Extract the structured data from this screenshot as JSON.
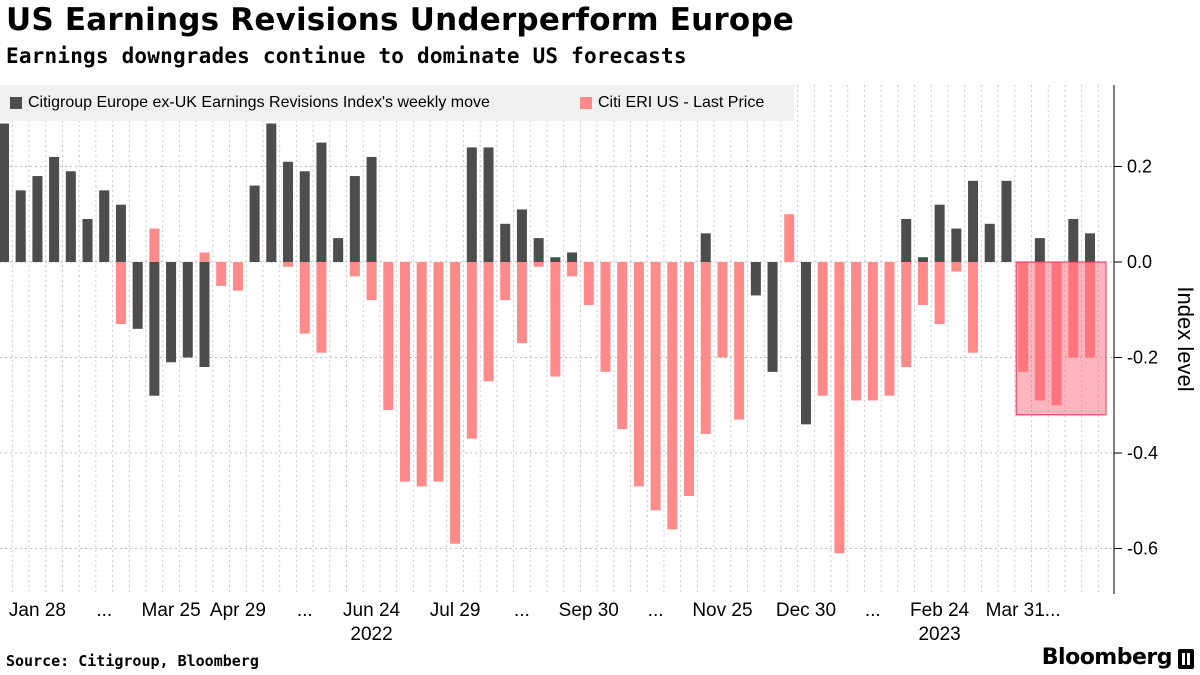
{
  "title": "US Earnings Revisions Underperform Europe",
  "subtitle": "Earnings downgrades continue to dominate US forecasts",
  "source": "Source: Citigroup, Bloomberg",
  "brand": "Bloomberg",
  "chart_data": {
    "type": "bar",
    "ylabel": "Index level",
    "ylim": [
      -0.7,
      0.37
    ],
    "yticks": [
      0.2,
      0.0,
      -0.2,
      -0.4,
      -0.6
    ],
    "ytick_labels": [
      "0.2",
      "0.0",
      "-0.2",
      "-0.4",
      "-0.6"
    ],
    "xtick_labels": [
      "Jan 28",
      "...",
      "Mar 25",
      "Apr 29",
      "...",
      "Jun 24",
      "Jul 29",
      "...",
      "Sep 30",
      "...",
      "Nov 25",
      "Dec 30",
      "...",
      "Feb 24",
      "Mar 31..."
    ],
    "xtick_index": [
      2,
      6,
      10,
      14,
      18,
      22,
      27,
      31,
      35,
      39,
      43,
      48,
      52,
      56,
      61
    ],
    "year_labels": [
      "2022",
      "2023"
    ],
    "year_index": [
      22,
      56
    ],
    "grid": true,
    "legend_position": "top-left",
    "series": [
      {
        "name": "Citigroup Europe ex-UK Earnings Revisions Index's weekly move",
        "color": "#4d4d4d",
        "values": [
          0.29,
          0.15,
          0.18,
          0.22,
          0.19,
          0.09,
          0.15,
          0.12,
          -0.14,
          -0.28,
          -0.21,
          -0.2,
          -0.22,
          0.0,
          0.0,
          0.16,
          0.29,
          0.21,
          0.19,
          0.25,
          0.05,
          0.18,
          0.22,
          0.0,
          0.0,
          0.0,
          0.0,
          0.0,
          0.24,
          0.24,
          0.08,
          0.11,
          0.05,
          0.01,
          0.02,
          0.0,
          0.0,
          0.0,
          0.0,
          0.0,
          0.0,
          0.0,
          0.06,
          0.0,
          0.0,
          -0.07,
          -0.23,
          0.0,
          -0.34,
          0.0,
          0.0,
          0.0,
          0.0,
          0.0,
          0.09,
          0.01,
          0.12,
          0.07,
          0.17,
          0.08,
          0.17,
          0.0,
          0.05,
          0.0,
          0.09,
          0.06
        ]
      },
      {
        "name": "Citi ERI US - Last Price",
        "color": "#ff8a8a",
        "values": [
          0.13,
          0.05,
          0.04,
          0.04,
          0.13,
          0.02,
          0.15,
          -0.13,
          -0.1,
          0.07,
          -0.07,
          -0.01,
          0.02,
          -0.05,
          -0.06,
          0.01,
          0.04,
          -0.01,
          -0.15,
          -0.19,
          0.03,
          -0.03,
          -0.08,
          -0.31,
          -0.46,
          -0.47,
          -0.46,
          -0.59,
          -0.37,
          -0.25,
          -0.08,
          -0.17,
          -0.01,
          -0.24,
          -0.03,
          -0.09,
          -0.23,
          -0.35,
          -0.47,
          -0.52,
          -0.56,
          -0.49,
          -0.36,
          -0.2,
          -0.33,
          -0.04,
          -0.23,
          0.1,
          -0.31,
          -0.28,
          -0.61,
          -0.29,
          -0.29,
          -0.28,
          -0.22,
          -0.09,
          -0.13,
          -0.02,
          -0.19,
          0.07,
          0.05,
          -0.23,
          -0.29,
          -0.3,
          -0.2,
          -0.2
        ]
      }
    ],
    "highlight": {
      "x_start": 61,
      "x_end": 66,
      "y_range": [
        -0.32,
        0.0
      ],
      "color": "#ff5a6e"
    }
  }
}
